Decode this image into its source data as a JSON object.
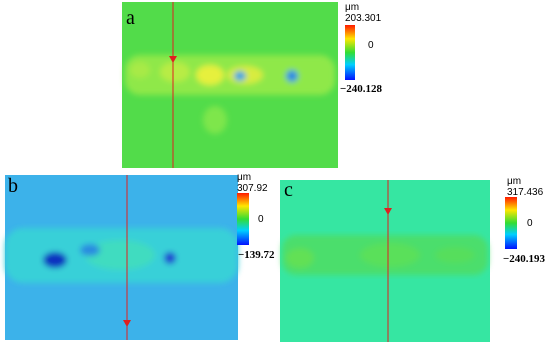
{
  "panels": [
    {
      "label": "a",
      "unit": "μm",
      "max": "203.301",
      "zero": "0",
      "min": "−240.128"
    },
    {
      "label": "b",
      "unit": "μm",
      "max": "307.92",
      "zero": "0",
      "min": "−139.72"
    },
    {
      "label": "c",
      "unit": "μm",
      "max": "317.436",
      "zero": "0",
      "min": "−240.193"
    }
  ]
}
